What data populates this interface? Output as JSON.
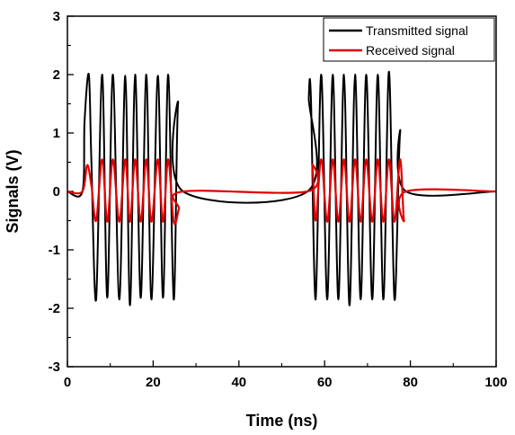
{
  "chart_data": {
    "type": "line",
    "title": "",
    "xlabel": "Time (ns)",
    "ylabel": "Signals (V)",
    "xlim": [
      0,
      100
    ],
    "ylim": [
      -3,
      3
    ],
    "x_ticks": [
      0,
      20,
      40,
      60,
      80,
      100
    ],
    "y_ticks": [
      -3,
      -2,
      -1,
      0,
      1,
      2,
      3
    ],
    "grid": false,
    "legend_position": "top-right",
    "bursts": [
      {
        "start": 3.5,
        "end": 27
      },
      {
        "start": 56,
        "end": 79
      }
    ],
    "series": [
      {
        "name": "Transmitted signal",
        "color": "#000000",
        "x": [
          0,
          3.5,
          4,
          5,
          5.6,
          6.7,
          8.1,
          9.3,
          10.6,
          12.1,
          13.5,
          14.6,
          15.8,
          17.1,
          18.4,
          19.6,
          21.1,
          22.3,
          23.5,
          24.8,
          25.8,
          27,
          56,
          56.3,
          56.8,
          57.9,
          59.2,
          60.6,
          61.9,
          63.2,
          64.5,
          65.8,
          67.1,
          68.4,
          69.7,
          71.1,
          72.4,
          73.7,
          75,
          76.3,
          77.6,
          79,
          100
        ],
        "y": [
          0,
          0,
          1.2,
          2.0,
          0.5,
          -1.85,
          2.0,
          -1.82,
          2.0,
          -1.85,
          1.98,
          -1.95,
          2.0,
          -1.82,
          2.0,
          -1.85,
          1.98,
          -1.82,
          2.0,
          -1.85,
          1.5,
          0,
          0,
          1.6,
          1.6,
          -1.85,
          2.0,
          -1.85,
          2.0,
          -1.85,
          2.0,
          -1.95,
          2.0,
          -1.85,
          2.0,
          -1.85,
          2.0,
          -1.85,
          2.05,
          -1.85,
          1.0,
          0,
          0
        ]
      },
      {
        "name": "Received signal",
        "color": "#e00000",
        "x": [
          0,
          3.5,
          4.6,
          5.6,
          6.7,
          8.1,
          9.3,
          10.6,
          12.1,
          13.5,
          14.6,
          15.8,
          17.1,
          18.4,
          19.6,
          21.1,
          22.3,
          23.5,
          24.8,
          26,
          27,
          56,
          57.1,
          57.9,
          59.2,
          60.6,
          61.9,
          63.2,
          64.5,
          65.8,
          67.1,
          68.4,
          69.7,
          71.1,
          72.4,
          73.7,
          75,
          76.3,
          77.6,
          78.5,
          79,
          100
        ],
        "y": [
          0,
          0,
          0.45,
          0.1,
          -0.5,
          0.55,
          -0.52,
          0.55,
          -0.52,
          0.55,
          -0.52,
          0.55,
          -0.52,
          0.55,
          -0.52,
          0.55,
          -0.52,
          0.55,
          -0.52,
          -0.3,
          0,
          0,
          0.45,
          -0.5,
          0.55,
          -0.52,
          0.55,
          -0.52,
          0.55,
          -0.52,
          0.55,
          -0.52,
          0.55,
          -0.52,
          0.55,
          -0.52,
          0.55,
          -0.52,
          0.55,
          -0.5,
          0,
          0
        ]
      }
    ]
  }
}
